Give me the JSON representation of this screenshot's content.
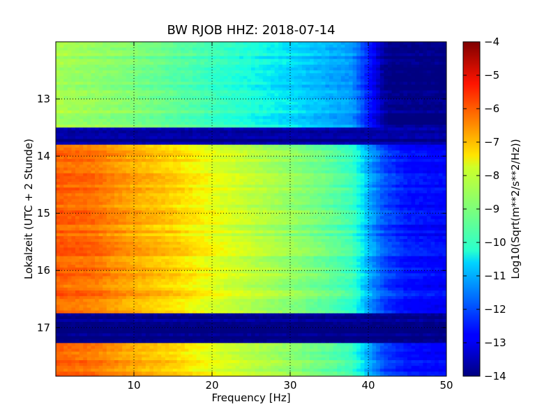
{
  "chart_data": {
    "type": "heatmap",
    "title": "BW RJOB HHZ: 2018-07-14",
    "xlabel": "Frequency [Hz]",
    "ylabel": "Lokalzeit (UTC + 2 Stunde)",
    "xlim": [
      0,
      50
    ],
    "ylim": [
      12.0,
      17.85
    ],
    "y_inverted": true,
    "grid": "dotted",
    "x_ticks": [
      10,
      20,
      30,
      40,
      50
    ],
    "y_ticks": [
      13,
      14,
      15,
      16,
      17
    ],
    "colormap": "jet",
    "colorbar": {
      "label": "Log10(Sqrt(m**2/s**2/Hz))",
      "min": -14,
      "max": -4,
      "ticks": [
        -4,
        -5,
        -6,
        -7,
        -8,
        -9,
        -10,
        -11,
        -12,
        -13,
        -14
      ]
    },
    "time_segments": [
      {
        "start": 12.0,
        "end": 13.5,
        "profile": "quiet"
      },
      {
        "start": 13.5,
        "end": 13.8,
        "profile": "gap"
      },
      {
        "start": 13.8,
        "end": 16.75,
        "profile": "loud"
      },
      {
        "start": 16.75,
        "end": 17.27,
        "profile": "gap"
      },
      {
        "start": 17.27,
        "end": 17.85,
        "profile": "loud"
      }
    ],
    "profile_levels": {
      "quiet": {
        "freq_hz": [
          0,
          10,
          20,
          30,
          38,
          40,
          42,
          43,
          50
        ],
        "log10_amplitude": [
          -8.5,
          -9.0,
          -9.8,
          -10.6,
          -11.3,
          -12.5,
          -13.8,
          -14,
          -14
        ]
      },
      "loud": {
        "freq_hz": [
          0,
          5,
          10,
          15,
          20,
          25,
          30,
          35,
          38,
          40,
          42,
          45,
          50
        ],
        "log10_amplitude": [
          -5.9,
          -6.1,
          -6.7,
          -7.1,
          -7.7,
          -8.2,
          -8.7,
          -9.3,
          -9.8,
          -11.0,
          -12.0,
          -12.6,
          -12.8
        ]
      },
      "gap": {
        "freq_hz": [
          0,
          50
        ],
        "log10_amplitude": [
          -13.8,
          -13.8
        ]
      }
    }
  }
}
